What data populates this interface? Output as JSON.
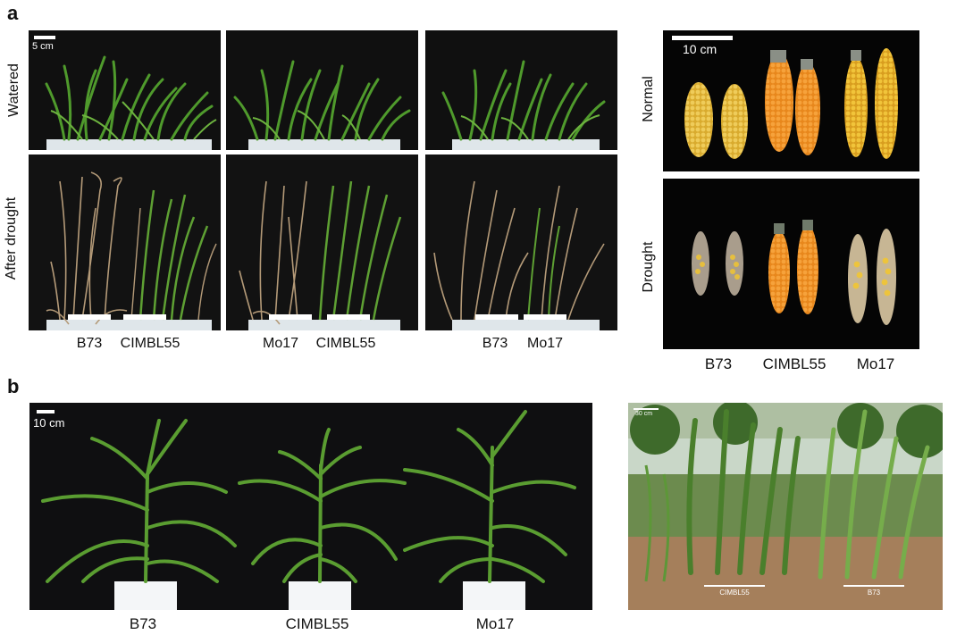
{
  "panel_a": {
    "letter": "a",
    "row_labels": {
      "top": "Watered",
      "bottom": "After drought"
    },
    "pot_scale": "5 cm",
    "pot_captions": [
      {
        "left": "B73",
        "right": "CIMBL55"
      },
      {
        "left": "Mo17",
        "right": "CIMBL55"
      },
      {
        "left": "B73",
        "right": "Mo17"
      }
    ],
    "ears": {
      "scale": "10 cm",
      "row_labels": {
        "top": "Normal",
        "bottom": "Drought"
      },
      "captions": [
        "B73",
        "CIMBL55",
        "Mo17"
      ]
    }
  },
  "panel_b": {
    "letter": "b",
    "studio": {
      "scale": "10 cm",
      "captions": [
        "B73",
        "CIMBL55",
        "Mo17"
      ]
    },
    "field": {
      "scale": "30 cm",
      "labels": [
        "CIMBL55",
        "B73"
      ]
    }
  },
  "colors": {
    "leaf": "#4f9a2c",
    "dry": "#b49a78",
    "kernel_yellow": "#e0b640",
    "kernel_orange": "#f0962a",
    "background_black": "#0e0e0e"
  }
}
